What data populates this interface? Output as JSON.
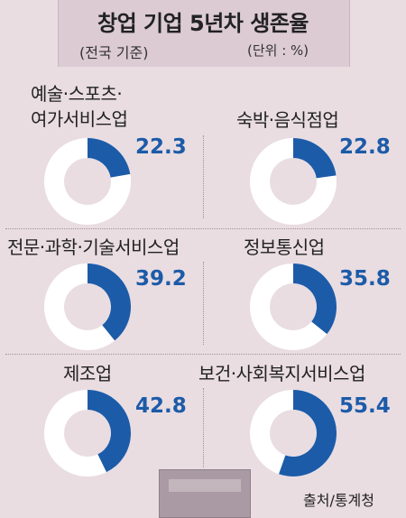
{
  "header": {
    "title": "창업 기업 5년차 생존율",
    "basis": "(전국 기준)",
    "unit": "(단위 : %)"
  },
  "source": "출처/통계청",
  "colors": {
    "filled": "#1c5ba8",
    "empty": "#ffffff",
    "background": "#e9dde2"
  },
  "chart_data": {
    "type": "pie",
    "title": "창업 기업 5년차 생존율",
    "unit": "%",
    "categories": [
      "예술·스포츠·여가서비스업",
      "숙박·음식점업",
      "전문·과학·기술서비스업",
      "정보통신업",
      "제조업",
      "보건·사회복지서비스업"
    ],
    "values": [
      22.3,
      22.8,
      39.2,
      35.8,
      42.8,
      55.4
    ],
    "items": [
      {
        "label_lines": [
          "예술·스포츠·",
          "여가서비스업"
        ],
        "value": 22.3,
        "value_text": "22.3"
      },
      {
        "label_lines": [
          "숙박·음식점업"
        ],
        "value": 22.8,
        "value_text": "22.8"
      },
      {
        "label_lines": [
          "전문·과학·기술서비스업"
        ],
        "value": 39.2,
        "value_text": "39.2"
      },
      {
        "label_lines": [
          "정보통신업"
        ],
        "value": 35.8,
        "value_text": "35.8"
      },
      {
        "label_lines": [
          "제조업"
        ],
        "value": 42.8,
        "value_text": "42.8"
      },
      {
        "label_lines": [
          "보건·사회복지서비스업"
        ],
        "value": 55.4,
        "value_text": "55.4"
      }
    ]
  }
}
